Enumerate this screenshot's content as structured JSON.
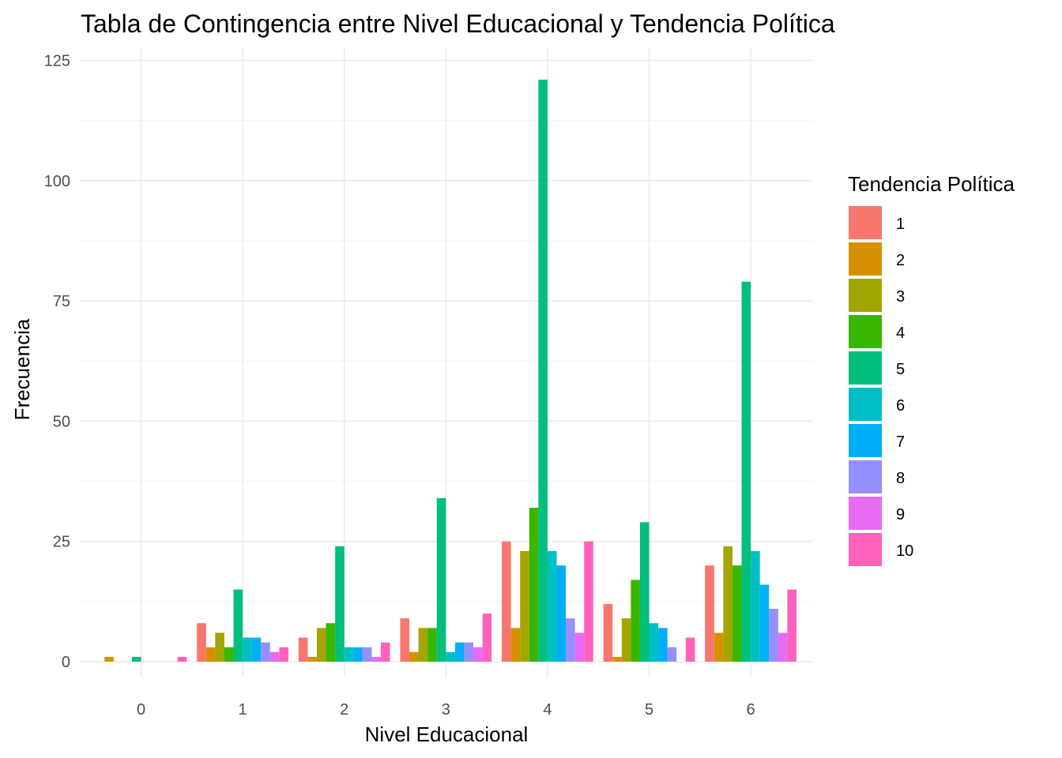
{
  "chart_data": {
    "type": "bar",
    "title": "Tabla de Contingencia entre Nivel Educacional y Tendencia Política",
    "xlabel": "Nivel Educacional",
    "ylabel": "Frecuencia",
    "categories": [
      "0",
      "1",
      "2",
      "3",
      "4",
      "5",
      "6"
    ],
    "ylim": [
      0,
      125
    ],
    "yticks": [
      0,
      25,
      50,
      75,
      100,
      125
    ],
    "grid": true,
    "legend": {
      "title": "Tendencia Política",
      "position": "right"
    },
    "series": [
      {
        "name": "1",
        "color": "#F8766D",
        "values": [
          0,
          8,
          5,
          9,
          25,
          12,
          20
        ]
      },
      {
        "name": "2",
        "color": "#D89000",
        "values": [
          1,
          3,
          1,
          2,
          7,
          1,
          6
        ]
      },
      {
        "name": "3",
        "color": "#A3A500",
        "values": [
          0,
          6,
          7,
          7,
          23,
          9,
          24
        ]
      },
      {
        "name": "4",
        "color": "#39B600",
        "values": [
          0,
          3,
          8,
          7,
          32,
          17,
          20
        ]
      },
      {
        "name": "5",
        "color": "#00BF7D",
        "values": [
          1,
          15,
          24,
          34,
          121,
          29,
          79
        ]
      },
      {
        "name": "6",
        "color": "#00BFC4",
        "values": [
          0,
          5,
          3,
          2,
          23,
          8,
          23
        ]
      },
      {
        "name": "7",
        "color": "#00B0F6",
        "values": [
          0,
          5,
          3,
          4,
          20,
          7,
          16
        ]
      },
      {
        "name": "8",
        "color": "#9590FF",
        "values": [
          0,
          4,
          3,
          4,
          9,
          3,
          11
        ]
      },
      {
        "name": "9",
        "color": "#E76BF3",
        "values": [
          0,
          2,
          1,
          3,
          6,
          0,
          6
        ]
      },
      {
        "name": "10",
        "color": "#FF62BC",
        "values": [
          1,
          3,
          4,
          10,
          25,
          5,
          15
        ]
      }
    ]
  }
}
